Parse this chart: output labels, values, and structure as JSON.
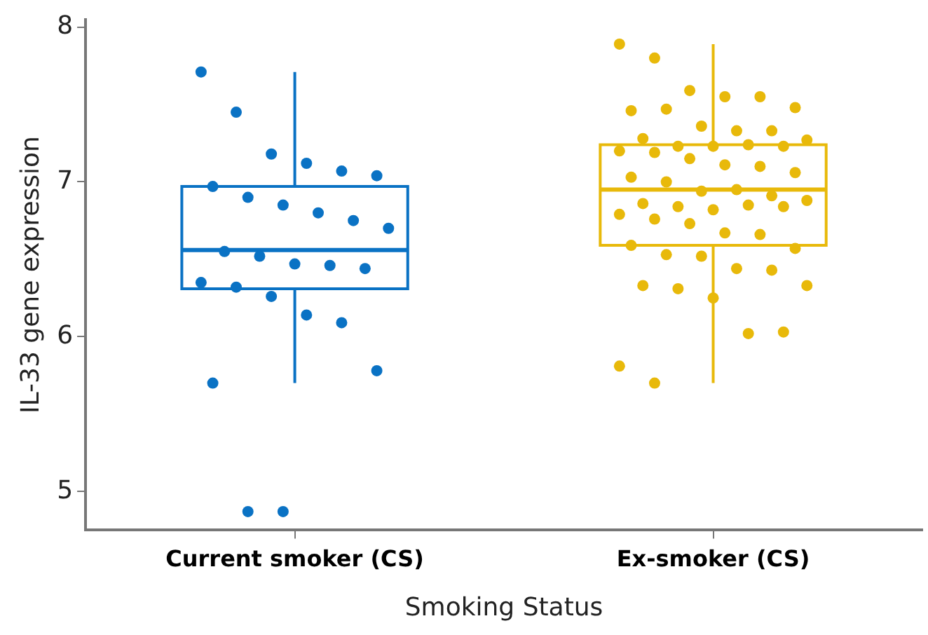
{
  "chart_data": {
    "type": "box",
    "xlabel": "Smoking Status",
    "ylabel": "IL-33 gene expression",
    "categories": [
      "Current smoker (CS)",
      "Ex-smoker (CS)"
    ],
    "ylim": [
      4.75,
      8.05
    ],
    "yticks": [
      5,
      6,
      7,
      8
    ],
    "grid": false,
    "legend": false,
    "series": [
      {
        "colors": [
          "#0a72c4",
          "#e8b90a"
        ],
        "boxes": [
          {
            "low": 5.7,
            "q1": 6.31,
            "median": 6.56,
            "q3": 6.97,
            "high": 7.71
          },
          {
            "low": 5.7,
            "q1": 6.59,
            "median": 6.95,
            "q3": 7.24,
            "high": 7.89
          }
        ]
      },
      {
        "type": "scatter",
        "color": "#0a72c4",
        "marker": "circle",
        "x": [
          "Current smoker (CS)",
          "Current smoker (CS)",
          "Current smoker (CS)",
          "Current smoker (CS)",
          "Current smoker (CS)",
          "Current smoker (CS)",
          "Current smoker (CS)",
          "Current smoker (CS)",
          "Current smoker (CS)",
          "Current smoker (CS)",
          "Current smoker (CS)",
          "Current smoker (CS)",
          "Current smoker (CS)",
          "Current smoker (CS)",
          "Current smoker (CS)",
          "Current smoker (CS)",
          "Current smoker (CS)",
          "Current smoker (CS)",
          "Current smoker (CS)",
          "Current smoker (CS)",
          "Current smoker (CS)",
          "Current smoker (CS)",
          "Current smoker (CS)",
          "Current smoker (CS)",
          "Current smoker (CS)",
          "Current smoker (CS)"
        ],
        "values": [
          7.71,
          7.45,
          7.18,
          7.12,
          7.07,
          7.04,
          6.97,
          6.9,
          6.85,
          6.8,
          6.75,
          6.7,
          6.55,
          6.52,
          6.47,
          6.46,
          6.44,
          6.35,
          6.32,
          6.26,
          6.14,
          6.09,
          5.78,
          5.7,
          4.87,
          4.87
        ]
      },
      {
        "type": "scatter",
        "color": "#e8b90a",
        "marker": "circle",
        "x": [
          "Ex-smoker (CS)",
          "Ex-smoker (CS)",
          "Ex-smoker (CS)",
          "Ex-smoker (CS)",
          "Ex-smoker (CS)",
          "Ex-smoker (CS)",
          "Ex-smoker (CS)",
          "Ex-smoker (CS)",
          "Ex-smoker (CS)",
          "Ex-smoker (CS)",
          "Ex-smoker (CS)",
          "Ex-smoker (CS)",
          "Ex-smoker (CS)",
          "Ex-smoker (CS)",
          "Ex-smoker (CS)",
          "Ex-smoker (CS)",
          "Ex-smoker (CS)",
          "Ex-smoker (CS)",
          "Ex-smoker (CS)",
          "Ex-smoker (CS)",
          "Ex-smoker (CS)",
          "Ex-smoker (CS)",
          "Ex-smoker (CS)",
          "Ex-smoker (CS)",
          "Ex-smoker (CS)",
          "Ex-smoker (CS)",
          "Ex-smoker (CS)",
          "Ex-smoker (CS)",
          "Ex-smoker (CS)",
          "Ex-smoker (CS)",
          "Ex-smoker (CS)",
          "Ex-smoker (CS)",
          "Ex-smoker (CS)",
          "Ex-smoker (CS)",
          "Ex-smoker (CS)",
          "Ex-smoker (CS)",
          "Ex-smoker (CS)",
          "Ex-smoker (CS)",
          "Ex-smoker (CS)",
          "Ex-smoker (CS)",
          "Ex-smoker (CS)",
          "Ex-smoker (CS)",
          "Ex-smoker (CS)",
          "Ex-smoker (CS)",
          "Ex-smoker (CS)",
          "Ex-smoker (CS)",
          "Ex-smoker (CS)",
          "Ex-smoker (CS)",
          "Ex-smoker (CS)",
          "Ex-smoker (CS)",
          "Ex-smoker (CS)",
          "Ex-smoker (CS)",
          "Ex-smoker (CS)"
        ],
        "values": [
          7.89,
          7.8,
          7.59,
          7.55,
          7.55,
          7.48,
          7.46,
          7.47,
          7.36,
          7.33,
          7.33,
          7.27,
          7.28,
          7.23,
          7.23,
          7.24,
          7.23,
          7.2,
          7.19,
          7.15,
          7.11,
          7.1,
          7.06,
          7.03,
          7.0,
          6.94,
          6.95,
          6.91,
          6.88,
          6.86,
          6.84,
          6.82,
          6.85,
          6.84,
          6.79,
          6.76,
          6.73,
          6.67,
          6.66,
          6.57,
          6.59,
          6.53,
          6.52,
          6.44,
          6.43,
          6.33,
          6.33,
          6.31,
          6.25,
          6.02,
          6.03,
          5.81,
          5.7
        ]
      }
    ]
  }
}
